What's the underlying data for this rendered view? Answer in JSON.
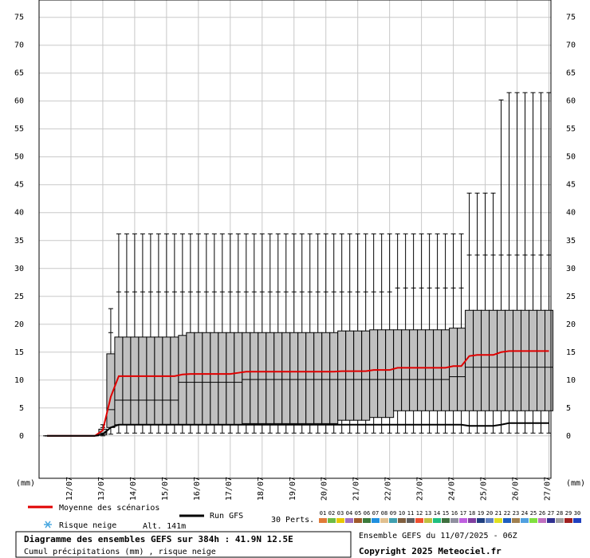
{
  "chart_data": {
    "type": "boxplot",
    "title": "Diagramme des ensembles GEFS sur 384h : 41.9N 12.5E",
    "subtitle": "Cumul précipitations (mm) , risque neige",
    "y_label": "(mm)",
    "run_label": "Ensemble GEFS du 11/07/2025 - 06Z",
    "copyright": "Copyright 2025 Meteociel.fr",
    "snow_label": "Risque neige",
    "altitude": "Alt. 141m",
    "perturbations": {
      "label": "30 Perts.",
      "members": [
        {
          "label": "01",
          "color": "#e07b39"
        },
        {
          "label": "02",
          "color": "#6dbb45"
        },
        {
          "label": "03",
          "color": "#e8c800"
        },
        {
          "label": "04",
          "color": "#a070c0"
        },
        {
          "label": "05",
          "color": "#a05a2c"
        },
        {
          "label": "06",
          "color": "#3c7a3c"
        },
        {
          "label": "07",
          "color": "#2090e0"
        },
        {
          "label": "08",
          "color": "#e0c090"
        },
        {
          "label": "09",
          "color": "#40a0b0"
        },
        {
          "label": "10",
          "color": "#806040"
        },
        {
          "label": "11",
          "color": "#606060"
        },
        {
          "label": "12",
          "color": "#f05030"
        },
        {
          "label": "13",
          "color": "#c0c040"
        },
        {
          "label": "14",
          "color": "#20c080"
        },
        {
          "label": "15",
          "color": "#407040"
        },
        {
          "label": "16",
          "color": "#9090a0"
        },
        {
          "label": "17",
          "color": "#c060e0"
        },
        {
          "label": "18",
          "color": "#8040a0"
        },
        {
          "label": "19",
          "color": "#204080"
        },
        {
          "label": "20",
          "color": "#6080c0"
        },
        {
          "label": "21",
          "color": "#e0e020"
        },
        {
          "label": "22",
          "color": "#2060c0"
        },
        {
          "label": "23",
          "color": "#a08050"
        },
        {
          "label": "24",
          "color": "#50a0e0"
        },
        {
          "label": "25",
          "color": "#80e040"
        },
        {
          "label": "26",
          "color": "#c070c0"
        },
        {
          "label": "27",
          "color": "#303090"
        },
        {
          "label": "28",
          "color": "#a0a0a0"
        },
        {
          "label": "29",
          "color": "#a02020"
        },
        {
          "label": "30",
          "color": "#2040c0"
        }
      ]
    },
    "x": [
      6,
      12,
      18,
      24,
      30,
      36,
      42,
      48,
      54,
      60,
      66,
      72,
      78,
      84,
      90,
      96,
      102,
      108,
      114,
      120,
      126,
      132,
      138,
      144,
      150,
      156,
      162,
      168,
      174,
      180,
      186,
      192,
      198,
      204,
      210,
      216,
      222,
      228,
      234,
      240,
      246,
      252,
      258,
      264,
      270,
      276,
      282,
      288,
      294,
      300,
      306,
      312,
      318,
      324,
      330,
      336,
      342,
      348,
      354,
      360,
      366,
      372,
      378,
      384
    ],
    "min": [
      0,
      0,
      0,
      0,
      0,
      0,
      0,
      0,
      0.3,
      0.5,
      0.5,
      0.5,
      0.5,
      0.5,
      0.5,
      0.5,
      0.5,
      0.5,
      0.5,
      0.5,
      0.5,
      0.5,
      0.5,
      0.5,
      0.5,
      0.5,
      0.5,
      0.5,
      0.5,
      0.5,
      0.5,
      0.5,
      0.5,
      0.5,
      0.5,
      0.5,
      0.5,
      0.5,
      0.5,
      0.5,
      0.5,
      0.5,
      0.5,
      0.5,
      0.5,
      0.5,
      0.5,
      0.5,
      0.5,
      0.5,
      0.5,
      0.5,
      0.5,
      0.5,
      0.5,
      0.5,
      0.5,
      0.5,
      0.5,
      0.5,
      0.5,
      0.5,
      0.5,
      0.5
    ],
    "q1": [
      0,
      0,
      0,
      0,
      0,
      0,
      0,
      0.2,
      1.5,
      2,
      2,
      2,
      2,
      2,
      2,
      2,
      2,
      2,
      2,
      2,
      2,
      2,
      2,
      2,
      2,
      2.2,
      2.2,
      2.2,
      2.2,
      2.2,
      2.2,
      2.2,
      2.2,
      2.2,
      2.2,
      2.2,
      2.2,
      2.8,
      2.8,
      2.8,
      2.8,
      3.3,
      3.3,
      3.3,
      4.5,
      4.5,
      4.5,
      4.5,
      4.5,
      4.5,
      4.5,
      4.5,
      4.5,
      4.5,
      4.5,
      4.5,
      4.5,
      4.5,
      4.5,
      4.5,
      4.5,
      4.5,
      4.5,
      4.5
    ],
    "median": [
      0,
      0,
      0,
      0,
      0,
      0,
      0,
      0.5,
      4.7,
      6.4,
      6.4,
      6.4,
      6.4,
      6.4,
      6.4,
      6.4,
      6.4,
      9.6,
      9.6,
      9.6,
      9.6,
      9.6,
      9.6,
      9.6,
      9.6,
      10.1,
      10.1,
      10.1,
      10.1,
      10.1,
      10.1,
      10.1,
      10.1,
      10.1,
      10.1,
      10.1,
      10.1,
      10.1,
      10.1,
      10.1,
      10.1,
      10.1,
      10.1,
      10.1,
      10.1,
      10.1,
      10.1,
      10.1,
      10.1,
      10.1,
      10.1,
      10.6,
      10.6,
      12.3,
      12.3,
      12.3,
      12.3,
      12.3,
      12.3,
      12.3,
      12.3,
      12.3,
      12.3,
      12.3
    ],
    "q3": [
      0,
      0,
      0,
      0,
      0,
      0,
      0,
      1.2,
      14.7,
      17.7,
      17.7,
      17.7,
      17.7,
      17.7,
      17.7,
      17.7,
      17.7,
      18.0,
      18.5,
      18.5,
      18.5,
      18.5,
      18.5,
      18.5,
      18.5,
      18.5,
      18.5,
      18.5,
      18.5,
      18.5,
      18.5,
      18.5,
      18.5,
      18.5,
      18.5,
      18.5,
      18.5,
      18.8,
      18.8,
      18.8,
      18.8,
      19.0,
      19.0,
      19.0,
      19.0,
      19.0,
      19.0,
      19.0,
      19.0,
      19.0,
      19.0,
      19.3,
      19.3,
      22.5,
      22.5,
      22.5,
      22.5,
      22.5,
      22.5,
      22.5,
      22.5,
      22.5,
      22.5,
      22.5
    ],
    "p90": [
      0,
      0,
      0,
      0,
      0,
      0,
      0,
      1.5,
      18.5,
      25.8,
      25.8,
      25.8,
      25.8,
      25.8,
      25.8,
      25.8,
      25.8,
      25.8,
      25.8,
      25.8,
      25.8,
      25.8,
      25.8,
      25.8,
      25.8,
      25.8,
      25.8,
      25.8,
      25.8,
      25.8,
      25.8,
      25.8,
      25.8,
      25.8,
      25.8,
      25.8,
      25.8,
      25.8,
      25.8,
      25.8,
      25.8,
      25.8,
      25.8,
      25.8,
      26.5,
      26.5,
      26.5,
      26.5,
      26.5,
      26.5,
      26.5,
      26.5,
      26.5,
      32.4,
      32.4,
      32.4,
      32.4,
      32.4,
      32.4,
      32.4,
      32.4,
      32.4,
      32.4,
      32.4
    ],
    "max": [
      0,
      0,
      0,
      0,
      0,
      0,
      0,
      2,
      22.8,
      36.2,
      36.2,
      36.2,
      36.2,
      36.2,
      36.2,
      36.2,
      36.2,
      36.2,
      36.2,
      36.2,
      36.2,
      36.2,
      36.2,
      36.2,
      36.2,
      36.2,
      36.2,
      36.2,
      36.2,
      36.2,
      36.2,
      36.2,
      36.2,
      36.2,
      36.2,
      36.2,
      36.2,
      36.2,
      36.2,
      36.2,
      36.2,
      36.2,
      36.2,
      36.2,
      36.2,
      36.2,
      36.2,
      36.2,
      36.2,
      36.2,
      36.2,
      36.2,
      36.2,
      43.5,
      43.5,
      43.5,
      43.5,
      60.2,
      61.5,
      61.5,
      61.5,
      61.5,
      61.5,
      61.5
    ],
    "series": [
      {
        "name": "Moyenne des scénarios",
        "color": "#e00000",
        "values": [
          0,
          0,
          0,
          0,
          0,
          0,
          0,
          1.0,
          7.0,
          10.7,
          10.7,
          10.7,
          10.7,
          10.7,
          10.7,
          10.7,
          10.7,
          11.0,
          11.1,
          11.1,
          11.1,
          11.1,
          11.1,
          11.1,
          11.3,
          11.5,
          11.5,
          11.5,
          11.5,
          11.5,
          11.5,
          11.5,
          11.5,
          11.5,
          11.5,
          11.5,
          11.5,
          11.6,
          11.6,
          11.6,
          11.6,
          11.8,
          11.8,
          11.8,
          12.2,
          12.2,
          12.2,
          12.2,
          12.2,
          12.2,
          12.2,
          12.5,
          12.5,
          14.3,
          14.5,
          14.5,
          14.5,
          15.0,
          15.2,
          15.2,
          15.2,
          15.2,
          15.2,
          15.2
        ]
      },
      {
        "name": "Run GFS",
        "color": "#000000",
        "values": [
          0,
          0,
          0,
          0,
          0,
          0,
          0,
          0.3,
          1.5,
          2.0,
          2.0,
          2.0,
          2.0,
          2.0,
          2.0,
          2.0,
          2.0,
          2.0,
          2.0,
          2.0,
          2.0,
          2.0,
          2.0,
          2.0,
          2.0,
          2.0,
          2.0,
          2.0,
          2.0,
          2.0,
          2.0,
          2.0,
          2.0,
          2.0,
          2.0,
          2.0,
          2.0,
          2.0,
          2.0,
          2.0,
          2.0,
          2.0,
          2.0,
          2.0,
          2.0,
          2.0,
          2.0,
          2.0,
          2.0,
          2.0,
          2.0,
          2.0,
          2.0,
          1.8,
          1.8,
          1.8,
          1.8,
          2.0,
          2.3,
          2.3,
          2.3,
          2.3,
          2.3,
          2.3
        ]
      }
    ],
    "box_color": "#c0c0c0",
    "xlim": [
      0,
      385.5
    ],
    "xticks": [
      {
        "value": 24,
        "label": "12/07"
      },
      {
        "value": 48,
        "label": "13/07"
      },
      {
        "value": 72,
        "label": "14/07"
      },
      {
        "value": 96,
        "label": "15/07"
      },
      {
        "value": 120,
        "label": "16/07"
      },
      {
        "value": 144,
        "label": "17/07"
      },
      {
        "value": 168,
        "label": "18/07"
      },
      {
        "value": 192,
        "label": "19/07"
      },
      {
        "value": 216,
        "label": "20/07"
      },
      {
        "value": 240,
        "label": "21/07"
      },
      {
        "value": 264,
        "label": "22/07"
      },
      {
        "value": 288,
        "label": "23/07"
      },
      {
        "value": 312,
        "label": "24/07"
      },
      {
        "value": 336,
        "label": "25/07"
      },
      {
        "value": 360,
        "label": "26/07"
      },
      {
        "value": 384,
        "label": "27/07"
      }
    ],
    "ylim": [
      -7.6,
      78.1
    ],
    "yticks": [
      0,
      5,
      10,
      15,
      20,
      25,
      30,
      35,
      40,
      45,
      50,
      55,
      60,
      65,
      70,
      75
    ],
    "grid": true
  }
}
